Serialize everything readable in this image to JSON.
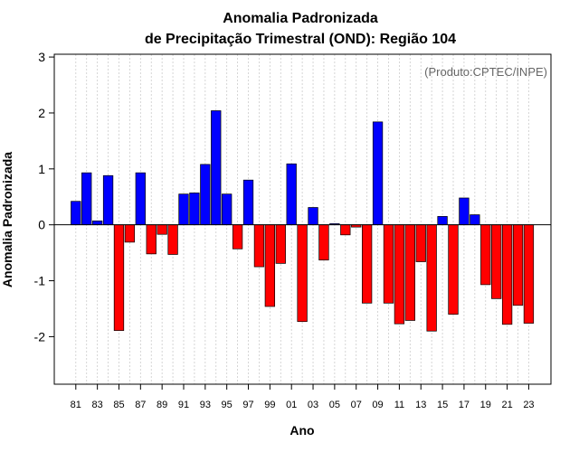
{
  "chart_data": {
    "type": "bar",
    "title_line1": "Anomalia Padronizada",
    "title_line2": "de Precipitação Trimestral (OND): Região 104",
    "xlabel": "Ano",
    "ylabel": "Anomalia Padronizada",
    "annotation": "(Produto:CPTEC/INPE)",
    "ylim": [
      -2.85,
      3.05
    ],
    "yticks": [
      "3",
      "2",
      "1",
      "0",
      "-1",
      "-2"
    ],
    "ytick_values": [
      3,
      2,
      1,
      0,
      -1,
      -2
    ],
    "categories": [
      "1981",
      "1982",
      "1983",
      "1984",
      "1985",
      "1986",
      "1987",
      "1988",
      "1989",
      "1990",
      "1991",
      "1992",
      "1993",
      "1994",
      "1995",
      "1996",
      "1997",
      "1998",
      "1999",
      "2000",
      "2001",
      "2002",
      "2003",
      "2004",
      "2005",
      "2006",
      "2007",
      "2008",
      "2009",
      "2010",
      "2011",
      "2012",
      "2013",
      "2014",
      "2015",
      "2016",
      "2017",
      "2018",
      "2019",
      "2020",
      "2021",
      "2022",
      "2023"
    ],
    "values": [
      0.42,
      0.93,
      0.07,
      0.88,
      -1.89,
      -0.31,
      0.93,
      -0.52,
      -0.17,
      -0.53,
      0.55,
      0.57,
      1.08,
      2.04,
      0.55,
      -0.43,
      0.8,
      -0.75,
      -1.46,
      -0.69,
      1.09,
      -1.73,
      0.31,
      -0.63,
      0.02,
      -0.18,
      -0.04,
      -1.4,
      1.84,
      -1.4,
      -1.77,
      -1.71,
      -0.66,
      -1.9,
      0.15,
      -1.6,
      0.48,
      0.18,
      -1.07,
      -1.32,
      -1.78,
      -1.44,
      -1.76
    ],
    "xtick_labels": [
      "81",
      "83",
      "85",
      "87",
      "89",
      "91",
      "93",
      "95",
      "97",
      "99",
      "01",
      "03",
      "05",
      "07",
      "09",
      "11",
      "13",
      "15",
      "17",
      "19",
      "21",
      "23"
    ],
    "xtick_indices": [
      0,
      2,
      4,
      6,
      8,
      10,
      12,
      14,
      16,
      18,
      20,
      22,
      24,
      26,
      28,
      30,
      32,
      34,
      36,
      38,
      40,
      42
    ],
    "colors": {
      "positive": "#0000ff",
      "negative": "#ff0000",
      "grid": "#cccccc",
      "zero_line": "#000000"
    }
  }
}
